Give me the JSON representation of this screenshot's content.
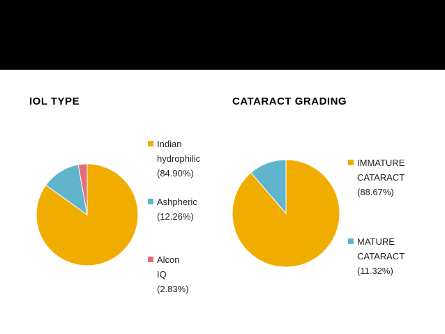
{
  "colors": {
    "header_bar": "#000000",
    "accent_gold": "#F0AD00",
    "accent_blue": "#60B5CC",
    "accent_pink": "#E46E7A",
    "slice_border": "#ffffff"
  },
  "chart_data": [
    {
      "type": "pie",
      "title": "IOL TYPE",
      "legend_position": "right",
      "slices": [
        {
          "label": "Indian\nhydrophilic\n(84.90%)",
          "value": 84.9,
          "color": "#F0AD00"
        },
        {
          "label": "Ashpheric\n(12.26%)",
          "value": 12.26,
          "color": "#60B5CC"
        },
        {
          "label": "Alcon IQ\n(2.83%)",
          "value": 2.83,
          "color": "#E46E7A"
        }
      ]
    },
    {
      "type": "pie",
      "title": "CATARACT GRADING",
      "legend_position": "right",
      "slices": [
        {
          "label": "IMMATURE\nCATARACT\n(88.67%)",
          "value": 88.67,
          "color": "#F0AD00"
        },
        {
          "label": "MATURE\nCATARACT\n(11.32%)",
          "value": 11.32,
          "color": "#60B5CC"
        }
      ]
    }
  ]
}
